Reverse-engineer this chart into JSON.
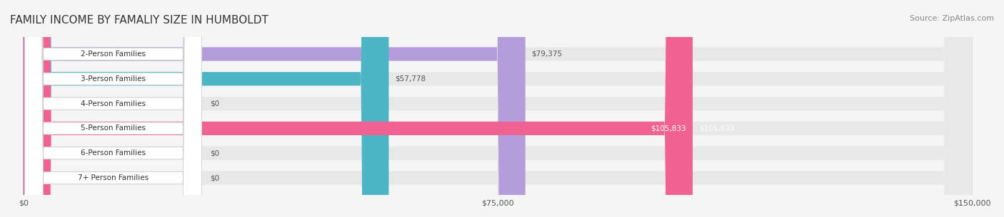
{
  "title": "FAMILY INCOME BY FAMALIY SIZE IN HUMBOLDT",
  "source": "Source: ZipAtlas.com",
  "categories": [
    "2-Person Families",
    "3-Person Families",
    "4-Person Families",
    "5-Person Families",
    "6-Person Families",
    "7+ Person Families"
  ],
  "values": [
    79375,
    57778,
    0,
    105833,
    0,
    0
  ],
  "bar_colors": [
    "#b39ddb",
    "#4db6c6",
    "#a5b4e8",
    "#f06292",
    "#f7c9a0",
    "#f4a9a8"
  ],
  "label_colors": [
    "#555555",
    "#555555",
    "#555555",
    "#ffffff",
    "#555555",
    "#555555"
  ],
  "value_labels": [
    "$79,375",
    "$57,778",
    "$0",
    "$105,833",
    "$0",
    "$0"
  ],
  "xlim": [
    0,
    150000
  ],
  "xtick_values": [
    0,
    75000,
    150000
  ],
  "xtick_labels": [
    "$0",
    "$75,000",
    "$150,000"
  ],
  "background_color": "#f5f5f5",
  "bar_background_color": "#e8e8e8",
  "title_fontsize": 11,
  "source_fontsize": 8,
  "bar_height": 0.55,
  "figsize": [
    14.06,
    3.05
  ],
  "dpi": 100
}
